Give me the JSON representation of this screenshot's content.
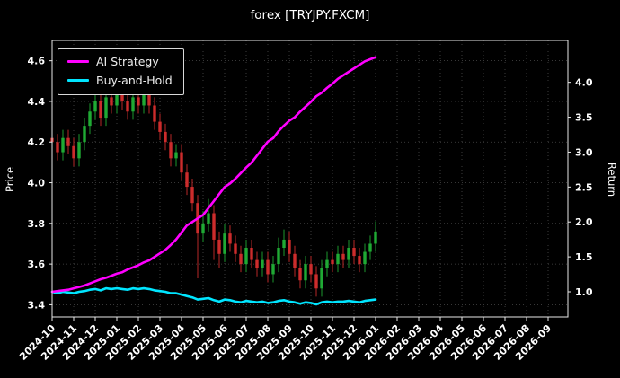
{
  "title": "forex [TRYJPY.FXCM]",
  "axes": {
    "left_label": "Price",
    "right_label": "Return",
    "left_ticks": [
      "4.6",
      "4.4",
      "4.2",
      "4.0",
      "3.8",
      "3.6",
      "3.4"
    ],
    "left_tick_values": [
      4.6,
      4.4,
      4.2,
      4.0,
      3.8,
      3.6,
      3.4
    ],
    "right_ticks": [
      "4.0",
      "3.5",
      "3.0",
      "2.5",
      "2.0",
      "1.5",
      "1.0"
    ],
    "right_tick_values": [
      4.0,
      3.5,
      3.0,
      2.5,
      2.0,
      1.5,
      1.0
    ],
    "x_ticks": [
      "2024-10",
      "2024-11",
      "2024-12",
      "2025-01",
      "2025-02",
      "2025-03",
      "2025-04",
      "2025-05",
      "2025-06",
      "2025-07",
      "2025-08",
      "2025-09",
      "2025-10",
      "2025-11",
      "2025-12",
      "2026-01",
      "2026-02",
      "2026-03",
      "2026-04",
      "2026-05",
      "2026-06",
      "2026-07",
      "2026-08",
      "2026-09"
    ],
    "price_ylim": [
      3.34,
      4.7
    ],
    "return_ylim": [
      0.64,
      4.6
    ]
  },
  "legend": {
    "items": [
      {
        "label": "AI Strategy",
        "color": "#ff00ff"
      },
      {
        "label": "Buy-and-Hold",
        "color": "#00e5ff"
      }
    ]
  },
  "colors": {
    "background": "#000000",
    "text": "#ffffff",
    "grid": "#4a4a4a",
    "spine": "#e8e8e8",
    "candle_up": "#1faa34",
    "candle_down": "#cc2c2c",
    "ai_line": "#ff00ff",
    "bh_line": "#00e5ff"
  },
  "chart_data": {
    "type": "candlestick+line",
    "title": "forex [TRYJPY.FXCM]",
    "x_start": "2024-10",
    "x_end_of_data": "2026-01",
    "x_interval": "weekly (estimated from plot)",
    "xlabel": "",
    "ylabel_left": "Price",
    "ylabel_right": "Return",
    "price_ylim": [
      3.34,
      4.7
    ],
    "return_ylim": [
      0.64,
      4.6
    ],
    "grid": "dotted",
    "legend_position": "upper-left",
    "candles_ohlc": [
      [
        4.22,
        4.26,
        4.16,
        4.2
      ],
      [
        4.2,
        4.24,
        4.11,
        4.15
      ],
      [
        4.15,
        4.26,
        4.11,
        4.22
      ],
      [
        4.22,
        4.26,
        4.14,
        4.18
      ],
      [
        4.18,
        4.22,
        4.08,
        4.12
      ],
      [
        4.12,
        4.24,
        4.08,
        4.2
      ],
      [
        4.2,
        4.32,
        4.16,
        4.28
      ],
      [
        4.28,
        4.39,
        4.24,
        4.35
      ],
      [
        4.35,
        4.44,
        4.31,
        4.4
      ],
      [
        4.4,
        4.44,
        4.28,
        4.32
      ],
      [
        4.32,
        4.46,
        4.28,
        4.42
      ],
      [
        4.42,
        4.46,
        4.34,
        4.38
      ],
      [
        4.38,
        4.5,
        4.34,
        4.45
      ],
      [
        4.45,
        4.49,
        4.36,
        4.4
      ],
      [
        4.4,
        4.44,
        4.31,
        4.35
      ],
      [
        4.35,
        4.46,
        4.31,
        4.42
      ],
      [
        4.42,
        4.46,
        4.34,
        4.38
      ],
      [
        4.38,
        4.48,
        4.34,
        4.44
      ],
      [
        4.44,
        4.48,
        4.34,
        4.38
      ],
      [
        4.38,
        4.42,
        4.26,
        4.3
      ],
      [
        4.3,
        4.34,
        4.21,
        4.25
      ],
      [
        4.25,
        4.29,
        4.16,
        4.2
      ],
      [
        4.2,
        4.24,
        4.08,
        4.12
      ],
      [
        4.12,
        4.19,
        4.08,
        4.15
      ],
      [
        4.15,
        4.19,
        4.01,
        4.05
      ],
      [
        4.05,
        4.09,
        3.94,
        3.98
      ],
      [
        3.98,
        4.02,
        3.86,
        3.9
      ],
      [
        3.9,
        3.94,
        3.53,
        3.75
      ],
      [
        3.75,
        3.86,
        3.71,
        3.8
      ],
      [
        3.8,
        3.92,
        3.76,
        3.85
      ],
      [
        3.85,
        3.89,
        3.62,
        3.72
      ],
      [
        3.72,
        3.76,
        3.58,
        3.65
      ],
      [
        3.65,
        3.8,
        3.61,
        3.75
      ],
      [
        3.75,
        3.79,
        3.66,
        3.7
      ],
      [
        3.7,
        3.74,
        3.61,
        3.65
      ],
      [
        3.65,
        3.69,
        3.56,
        3.6
      ],
      [
        3.6,
        3.72,
        3.56,
        3.68
      ],
      [
        3.68,
        3.72,
        3.58,
        3.62
      ],
      [
        3.62,
        3.66,
        3.54,
        3.58
      ],
      [
        3.58,
        3.66,
        3.54,
        3.62
      ],
      [
        3.62,
        3.66,
        3.51,
        3.55
      ],
      [
        3.55,
        3.64,
        3.51,
        3.6
      ],
      [
        3.6,
        3.73,
        3.56,
        3.68
      ],
      [
        3.68,
        3.77,
        3.64,
        3.72
      ],
      [
        3.72,
        3.76,
        3.61,
        3.65
      ],
      [
        3.65,
        3.69,
        3.54,
        3.58
      ],
      [
        3.58,
        3.62,
        3.48,
        3.52
      ],
      [
        3.52,
        3.64,
        3.48,
        3.6
      ],
      [
        3.6,
        3.64,
        3.51,
        3.55
      ],
      [
        3.55,
        3.59,
        3.44,
        3.48
      ],
      [
        3.48,
        3.62,
        3.44,
        3.58
      ],
      [
        3.58,
        3.66,
        3.54,
        3.62
      ],
      [
        3.62,
        3.66,
        3.56,
        3.6
      ],
      [
        3.6,
        3.69,
        3.56,
        3.65
      ],
      [
        3.65,
        3.69,
        3.58,
        3.62
      ],
      [
        3.62,
        3.72,
        3.58,
        3.68
      ],
      [
        3.68,
        3.72,
        3.6,
        3.64
      ],
      [
        3.64,
        3.68,
        3.56,
        3.6
      ],
      [
        3.6,
        3.7,
        3.56,
        3.66
      ],
      [
        3.66,
        3.74,
        3.62,
        3.7
      ],
      [
        3.7,
        3.81,
        3.66,
        3.76
      ]
    ],
    "series": [
      {
        "name": "AI Strategy",
        "axis": "right",
        "color": "#ff00ff",
        "values": [
          1.0,
          1.01,
          1.02,
          1.03,
          1.05,
          1.07,
          1.09,
          1.12,
          1.15,
          1.18,
          1.2,
          1.23,
          1.26,
          1.28,
          1.32,
          1.35,
          1.38,
          1.42,
          1.45,
          1.5,
          1.55,
          1.6,
          1.67,
          1.75,
          1.85,
          1.95,
          2.0,
          2.05,
          2.1,
          2.2,
          2.3,
          2.4,
          2.5,
          2.55,
          2.62,
          2.7,
          2.78,
          2.85,
          2.95,
          3.05,
          3.15,
          3.2,
          3.3,
          3.38,
          3.45,
          3.5,
          3.58,
          3.65,
          3.72,
          3.8,
          3.85,
          3.92,
          3.98,
          4.05,
          4.1,
          4.15,
          4.2,
          4.25,
          4.3,
          4.33,
          4.36
        ]
      },
      {
        "name": "Buy-and-Hold",
        "axis": "right",
        "color": "#00e5ff",
        "values": [
          1.0,
          0.98,
          1.0,
          0.99,
          0.98,
          1.0,
          1.01,
          1.03,
          1.04,
          1.02,
          1.05,
          1.04,
          1.05,
          1.04,
          1.03,
          1.05,
          1.04,
          1.05,
          1.04,
          1.02,
          1.01,
          1.0,
          0.98,
          0.98,
          0.96,
          0.94,
          0.92,
          0.89,
          0.9,
          0.91,
          0.88,
          0.86,
          0.89,
          0.88,
          0.86,
          0.85,
          0.87,
          0.86,
          0.85,
          0.86,
          0.84,
          0.85,
          0.87,
          0.88,
          0.86,
          0.85,
          0.83,
          0.85,
          0.84,
          0.82,
          0.85,
          0.86,
          0.85,
          0.86,
          0.86,
          0.87,
          0.86,
          0.85,
          0.87,
          0.88,
          0.89
        ]
      }
    ]
  }
}
